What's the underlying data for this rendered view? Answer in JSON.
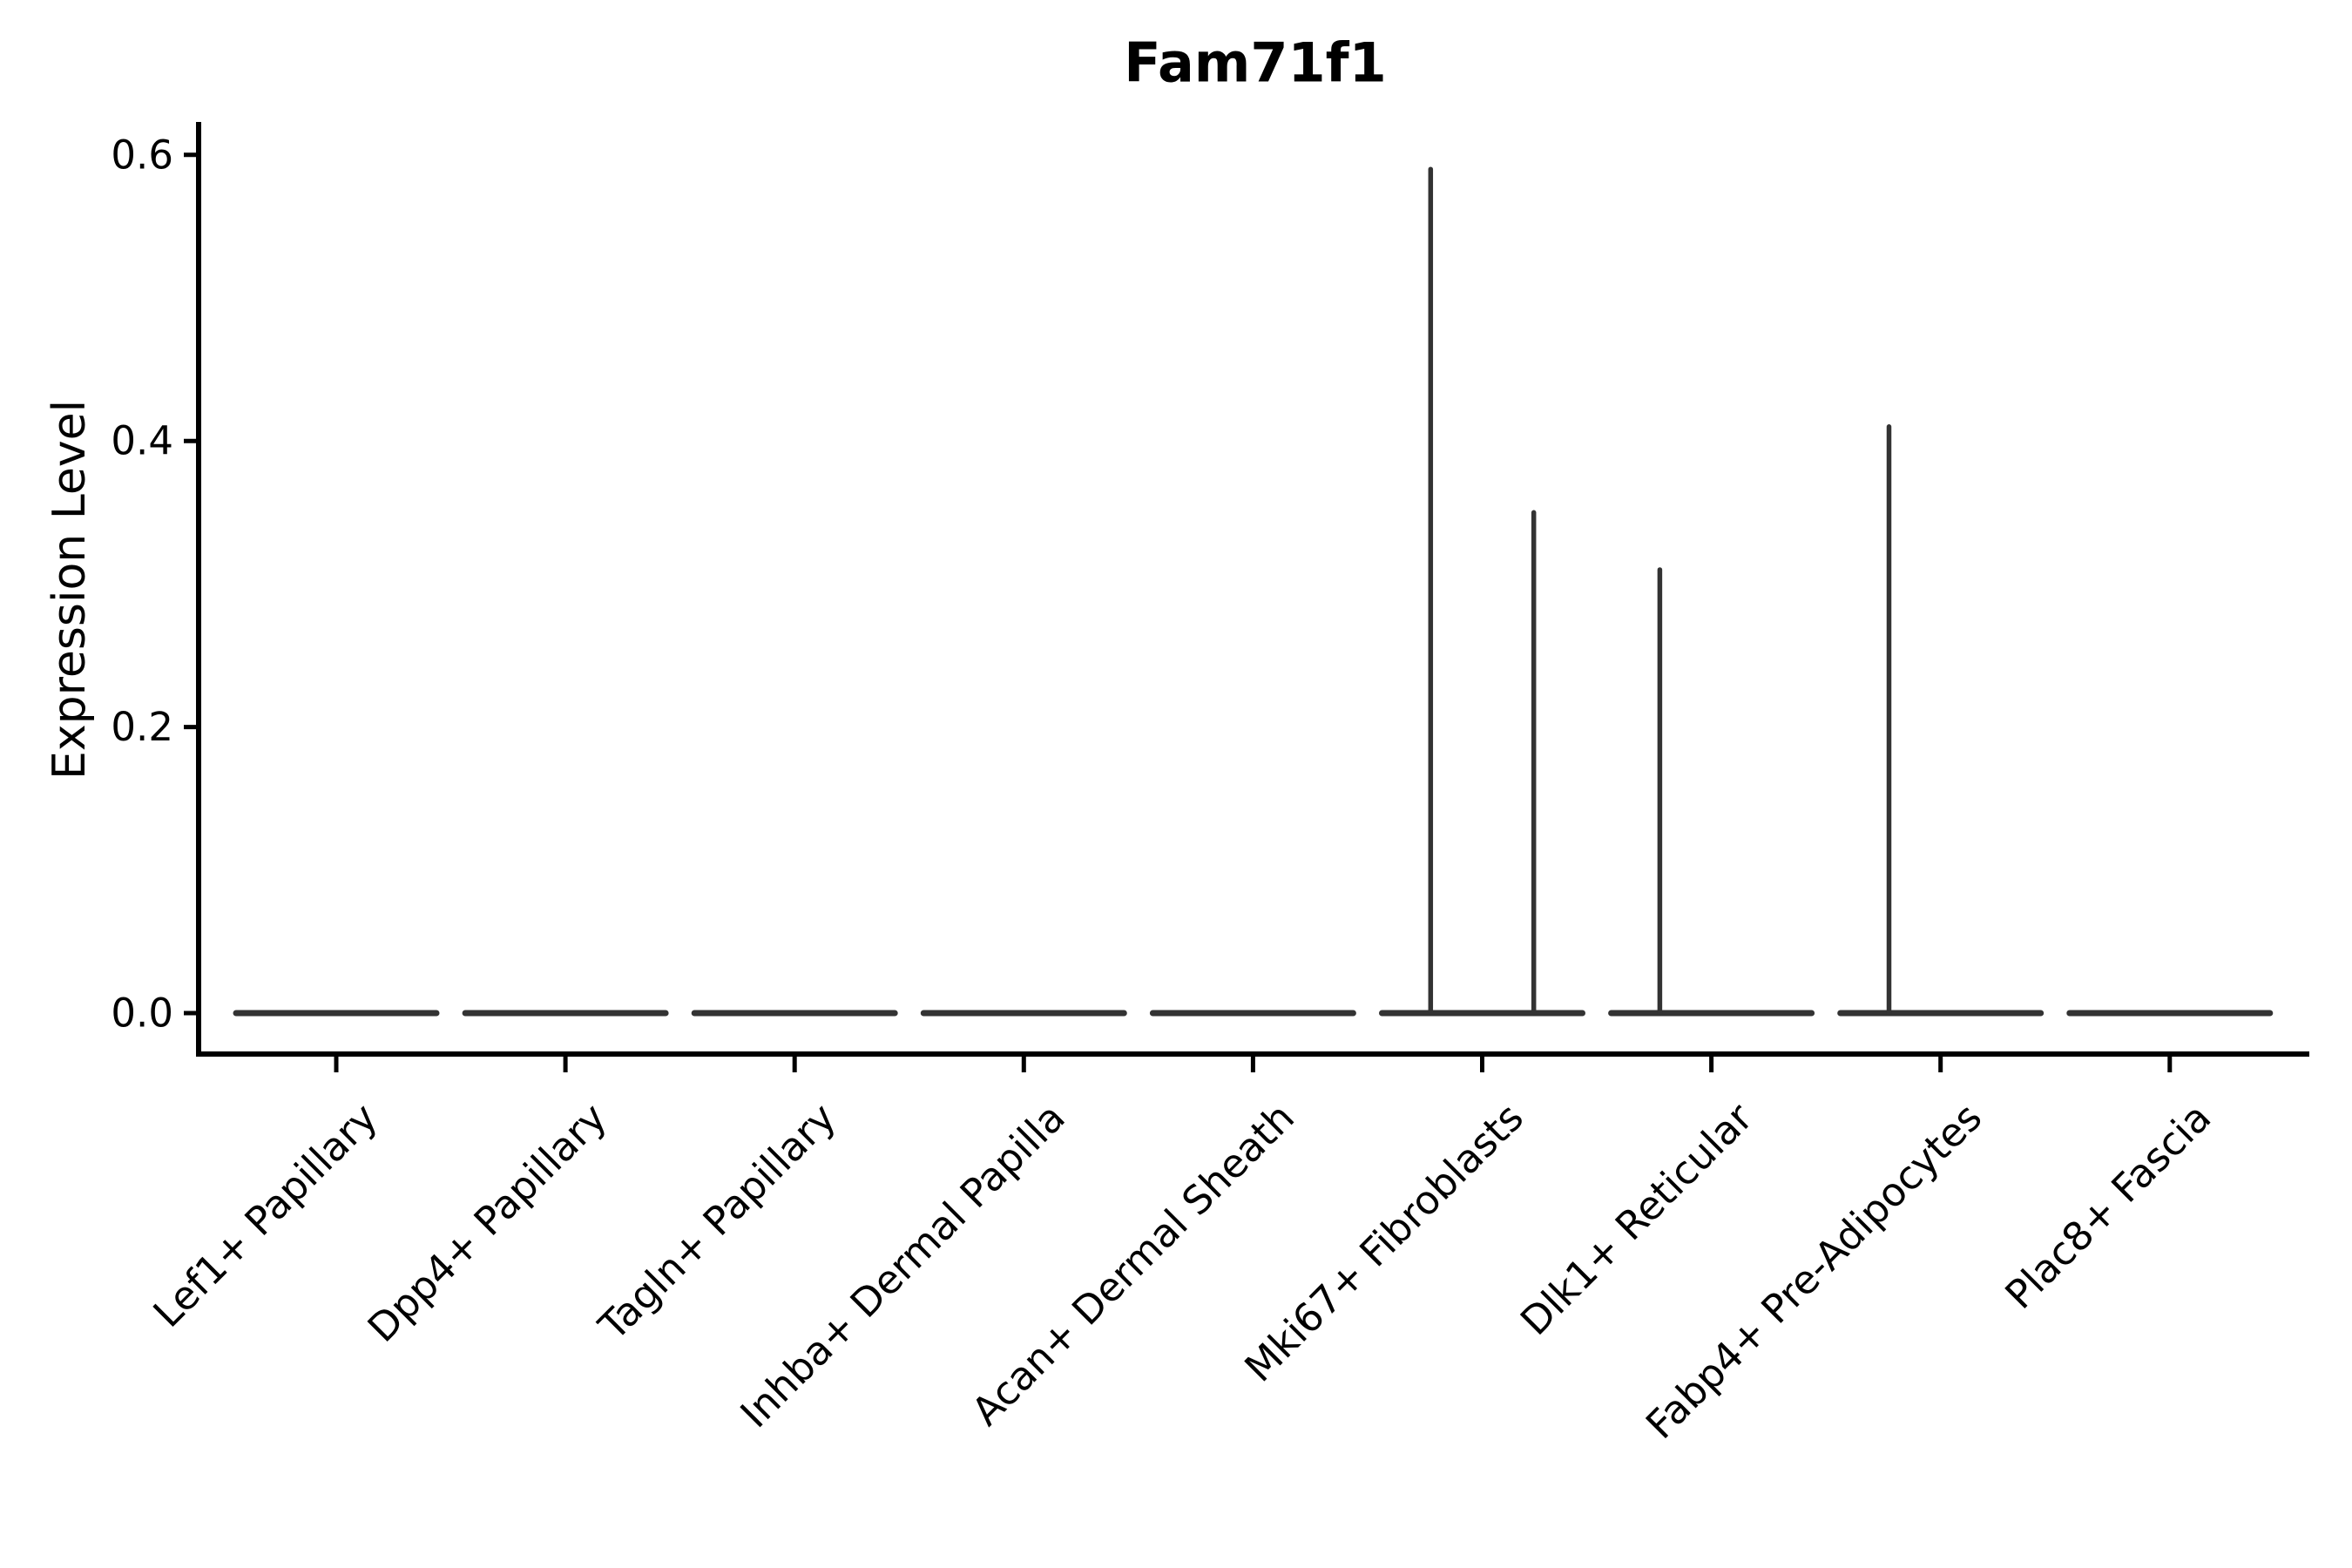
{
  "figure": {
    "title": "Fam71f1",
    "ylabel": "Expression Level"
  },
  "chart_data": {
    "type": "violin",
    "title": "Fam71f1",
    "xlabel": "",
    "ylabel": "Expression Level",
    "ylim": [
      -0.03,
      0.62
    ],
    "grid": false,
    "legend_position": "none",
    "yticks": [
      {
        "value": 0.0,
        "label": "0.0"
      },
      {
        "value": 0.2,
        "label": "0.2"
      },
      {
        "value": 0.4,
        "label": "0.4"
      },
      {
        "value": 0.6,
        "label": "0.6"
      }
    ],
    "categories": [
      "Lef1+ Papillary",
      "Dpp4+ Papillary",
      "Tagln+ Papillary",
      "Inhba+ Dermal Papilla",
      "Acan+ Dermal Sheath",
      "Mki67+ Fibroblasts",
      "Dlk1+ Reticular",
      "Fabp4+ Pre-Adipocytes",
      "Plac8+ Fascia"
    ],
    "violins": [
      {
        "category": "Lef1+ Papillary",
        "base_value": 0.0,
        "spikes": []
      },
      {
        "category": "Dpp4+ Papillary",
        "base_value": 0.0,
        "spikes": []
      },
      {
        "category": "Tagln+ Papillary",
        "base_value": 0.0,
        "spikes": []
      },
      {
        "category": "Inhba+ Dermal Papilla",
        "base_value": 0.0,
        "spikes": []
      },
      {
        "category": "Acan+ Dermal Sheath",
        "base_value": 0.0,
        "spikes": []
      },
      {
        "category": "Mki67+ Fibroblasts",
        "base_value": 0.0,
        "spikes": [
          {
            "offset": -0.225,
            "value": 0.59
          },
          {
            "offset": 0.225,
            "value": 0.35
          }
        ]
      },
      {
        "category": "Dlk1+ Reticular",
        "base_value": 0.0,
        "spikes": [
          {
            "offset": -0.225,
            "value": 0.31
          }
        ]
      },
      {
        "category": "Fabp4+ Pre-Adipocytes",
        "base_value": 0.0,
        "spikes": [
          {
            "offset": -0.225,
            "value": 0.41
          }
        ]
      },
      {
        "category": "Plac8+ Fascia",
        "base_value": 0.0,
        "spikes": []
      }
    ],
    "colors": {
      "violin_line": "#333333",
      "axis": "#000000",
      "text": "#000000",
      "background": "#ffffff"
    }
  }
}
